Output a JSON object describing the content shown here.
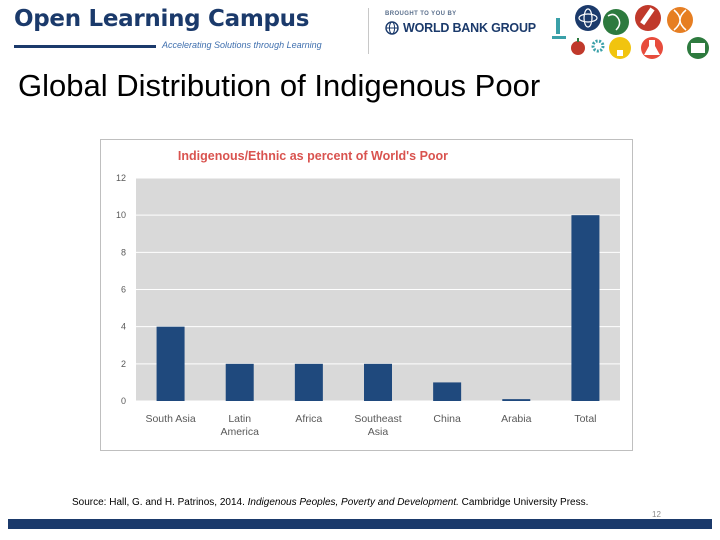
{
  "header": {
    "brand": "Open Learning Campus",
    "tagline": "Accelerating Solutions through Learning",
    "brought_by": "BROUGHT TO YOU BY",
    "partner": "WORLD BANK GROUP",
    "icons": [
      "microscope-icon",
      "atom-icon",
      "globe-icon",
      "pencil-icon",
      "dna-icon",
      "apple-icon",
      "gear-icon",
      "lightbulb-icon",
      "flask-icon",
      "book-icon"
    ]
  },
  "slide": {
    "title": "Global Distribution of Indigenous Poor",
    "page_number": "12"
  },
  "source": {
    "prefix": "Source:  Hall, G. and H. Patrinos, 2014.  ",
    "title": "Indigenous Peoples, Poverty and Development.",
    "suffix": "  Cambridge University Press."
  },
  "chart_data": {
    "type": "bar",
    "title": "Indigenous/Ethnic as percent of World's Poor",
    "categories": [
      "South Asia",
      "Latin America",
      "Africa",
      "Southeast Asia",
      "China",
      "Arabia",
      "Total"
    ],
    "category_lines": [
      [
        "South Asia"
      ],
      [
        "Latin",
        "America"
      ],
      [
        "Africa"
      ],
      [
        "Southeast",
        "Asia"
      ],
      [
        "China"
      ],
      [
        "Arabia"
      ],
      [
        "Total"
      ]
    ],
    "values": [
      4,
      2,
      2,
      2,
      1,
      0.1,
      10
    ],
    "ylim": [
      0,
      12
    ],
    "yticks": [
      0,
      2,
      4,
      6,
      8,
      10,
      12
    ],
    "grid": true,
    "colors": {
      "bar": "#1f497d",
      "plot_bg": "#d9d9d9",
      "gridline": "#ffffff",
      "title": "#d9534f",
      "frame": "#bfbfbf",
      "tick_text": "#595959"
    }
  }
}
